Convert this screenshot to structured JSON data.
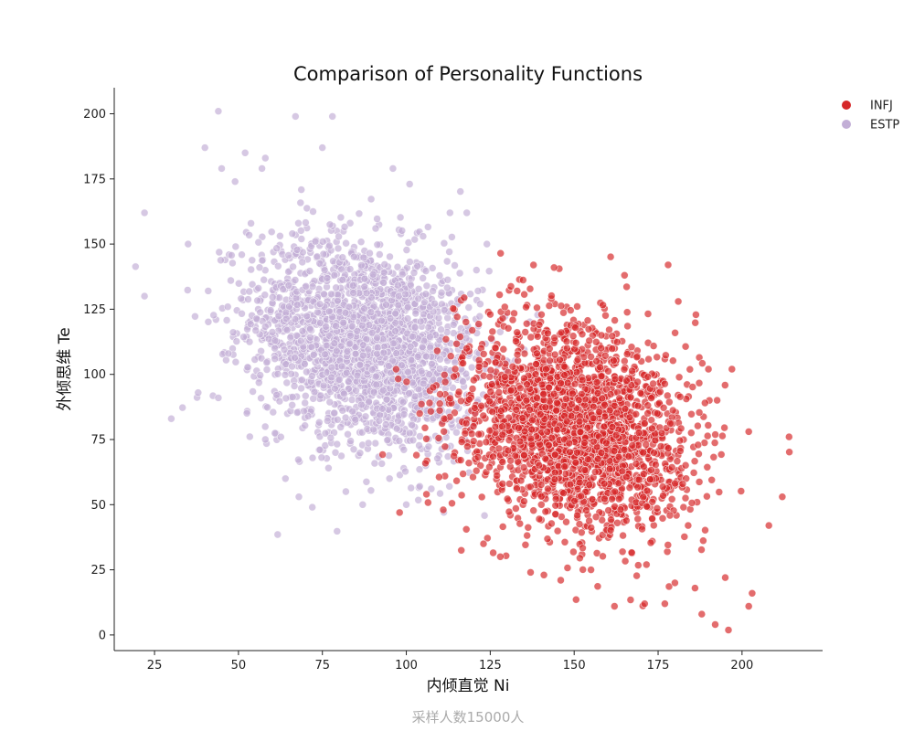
{
  "chart_data": {
    "type": "scatter",
    "title": "Comparison of Personality Functions",
    "xlabel": "内倾直觉 Ni",
    "ylabel": "外倾思维 Te",
    "footnote": "采样人数15000人",
    "xlim": [
      13,
      224
    ],
    "ylim": [
      -6,
      210
    ],
    "xticks": [
      25,
      50,
      75,
      100,
      125,
      150,
      175,
      200
    ],
    "yticks": [
      0,
      25,
      50,
      75,
      100,
      125,
      150,
      175,
      200
    ],
    "grid": false,
    "legend_position": "top-right",
    "series": [
      {
        "name": "INFJ",
        "color": "#d62728",
        "center": [
          150,
          80
        ],
        "spread": [
          17,
          20
        ],
        "correlation": -0.25,
        "count": 7500,
        "points": [
          [
            98,
            47
          ],
          [
            111,
            48
          ],
          [
            123,
            35
          ],
          [
            128,
            30
          ],
          [
            137,
            24
          ],
          [
            141,
            23
          ],
          [
            146,
            21
          ],
          [
            155,
            25
          ],
          [
            162,
            11
          ],
          [
            171,
            12
          ],
          [
            177,
            12
          ],
          [
            180,
            20
          ],
          [
            186,
            18
          ],
          [
            188,
            8
          ],
          [
            192,
            4
          ],
          [
            195,
            22
          ],
          [
            202,
            11
          ],
          [
            203,
            16
          ],
          [
            208,
            42
          ],
          [
            212,
            53
          ],
          [
            214,
            76
          ],
          [
            202,
            78
          ],
          [
            190,
            102
          ],
          [
            197,
            102
          ],
          [
            181,
            128
          ],
          [
            178,
            142
          ],
          [
            165,
            138
          ],
          [
            144,
            141
          ],
          [
            133,
            132
          ],
          [
            125,
            123
          ],
          [
            118,
            110
          ],
          [
            108,
            95
          ],
          [
            104,
            85
          ],
          [
            103,
            69
          ],
          [
            106,
            54
          ]
        ]
      },
      {
        "name": "ESTP",
        "color": "#c2aed6",
        "center": [
          88,
          112
        ],
        "spread": [
          17,
          20
        ],
        "correlation": -0.25,
        "count": 7500,
        "points": [
          [
            22,
            162
          ],
          [
            22,
            130
          ],
          [
            30,
            83
          ],
          [
            38,
            93
          ],
          [
            44,
            91
          ],
          [
            40,
            187
          ],
          [
            44,
            201
          ],
          [
            45,
            179
          ],
          [
            49,
            174
          ],
          [
            52,
            185
          ],
          [
            57,
            179
          ],
          [
            58,
            183
          ],
          [
            67,
            199
          ],
          [
            75,
            187
          ],
          [
            78,
            199
          ],
          [
            96,
            179
          ],
          [
            101,
            173
          ],
          [
            105,
            153
          ],
          [
            113,
            162
          ],
          [
            118,
            162
          ],
          [
            124,
            150
          ],
          [
            122,
            127
          ],
          [
            113,
            92
          ],
          [
            110,
            75
          ],
          [
            104,
            57
          ],
          [
            100,
            50
          ],
          [
            95,
            60
          ],
          [
            87,
            50
          ],
          [
            82,
            55
          ],
          [
            72,
            49
          ],
          [
            68,
            53
          ],
          [
            64,
            60
          ],
          [
            58,
            75
          ],
          [
            47,
            108
          ],
          [
            41,
            132
          ],
          [
            35,
            150
          ]
        ]
      }
    ]
  }
}
